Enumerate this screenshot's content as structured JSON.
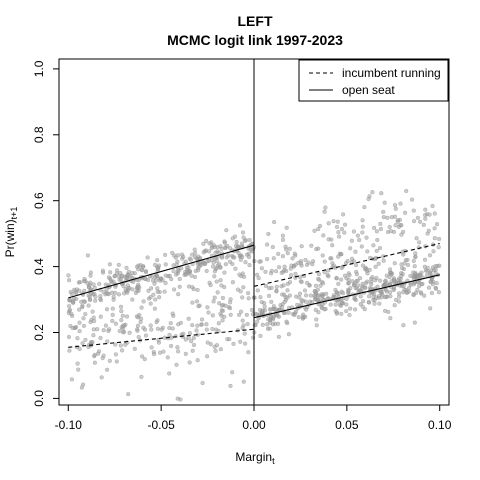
{
  "chart_data": {
    "type": "scatter",
    "title": "LEFT",
    "subtitle": "MCMC logit link 1997-2023",
    "xlabel": "Margin",
    "xlabel_sub": "t",
    "ylabel": "Pr(win)",
    "ylabel_sub": "t+1",
    "xlim": [
      -0.105,
      0.105
    ],
    "ylim": [
      -0.02,
      1.03
    ],
    "xticks": [
      -0.1,
      -0.05,
      0.0,
      0.05,
      0.1
    ],
    "xtick_labels": [
      "-0.10",
      "-0.05",
      "0.00",
      "0.05",
      "0.10"
    ],
    "yticks": [
      0.0,
      0.2,
      0.4,
      0.6,
      0.8,
      1.0
    ],
    "ytick_labels": [
      "0.0",
      "0.2",
      "0.4",
      "0.6",
      "0.8",
      "1.0"
    ],
    "vline_x": 0.0,
    "legend": {
      "position": "top-right",
      "entries": [
        {
          "label": "incumbent running",
          "style": "dashed"
        },
        {
          "label": "open seat",
          "style": "solid"
        }
      ]
    },
    "point_color": "#a0a0a0",
    "line_color": "#000000",
    "lines": [
      {
        "legend": "open seat",
        "style": "solid",
        "x": [
          -0.1,
          0.0
        ],
        "y": [
          0.305,
          0.465
        ]
      },
      {
        "legend": "incumbent running",
        "style": "dashed",
        "x": [
          -0.1,
          0.0
        ],
        "y": [
          0.155,
          0.21
        ]
      },
      {
        "legend": "open seat",
        "style": "solid",
        "x": [
          0.0,
          0.1
        ],
        "y": [
          0.245,
          0.375
        ]
      },
      {
        "legend": "incumbent running",
        "style": "dashed",
        "x": [
          0.0,
          0.1
        ],
        "y": [
          0.34,
          0.47
        ]
      }
    ],
    "point_clouds": [
      {
        "x_range": [
          -0.1,
          0.0
        ],
        "y_start": 0.305,
        "y_end": 0.465,
        "spread": 0.025,
        "count": 320
      },
      {
        "x_range": [
          -0.1,
          0.0
        ],
        "y_start": 0.18,
        "y_end": 0.26,
        "spread": 0.08,
        "count": 280
      },
      {
        "x_range": [
          0.0,
          0.1
        ],
        "y_start": 0.245,
        "y_end": 0.375,
        "spread": 0.025,
        "count": 320
      },
      {
        "x_range": [
          0.0,
          0.1
        ],
        "y_start": 0.34,
        "y_end": 0.47,
        "spread": 0.085,
        "count": 320
      }
    ]
  }
}
